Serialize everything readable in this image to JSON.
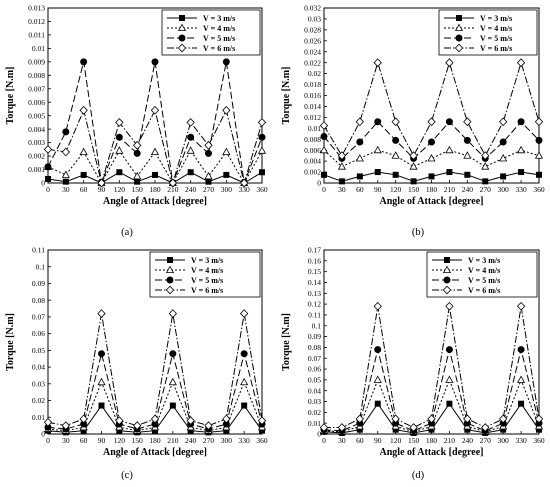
{
  "figure": {
    "panel_captions": [
      "(a)",
      "(b)",
      "(c)",
      "(d)"
    ]
  },
  "series_styles": [
    {
      "name": "V = 3 m/s",
      "dash": "",
      "marker": "square",
      "fill": "#000000"
    },
    {
      "name": "V = 4 m/s",
      "dash": "2,2",
      "marker": "triangle",
      "fill": "#ffffff"
    },
    {
      "name": "V = 5 m/s",
      "dash": "7,3",
      "marker": "circle",
      "fill": "#000000"
    },
    {
      "name": "V = 6 m/s",
      "dash": "7,2,1.5,2",
      "marker": "diamond",
      "fill": "#ffffff"
    }
  ],
  "chart_data": [
    {
      "type": "line",
      "panel": "(a)",
      "xlabel": "Angle of Attack [degree]",
      "ylabel": "Torque [N.m]",
      "xlim": [
        0,
        360
      ],
      "ylim": [
        0,
        0.013
      ],
      "xticks": [
        0,
        30,
        60,
        90,
        120,
        150,
        180,
        210,
        240,
        270,
        300,
        330,
        360
      ],
      "yticks": [
        "0",
        "0.001",
        "0.002",
        "0.003",
        "0.004",
        "0.005",
        "0.006",
        "0.007",
        "0.008",
        "0.009",
        "0.01",
        "0.011",
        "0.012",
        "0.013"
      ],
      "legend_position": "top-right",
      "x": [
        0,
        30,
        60,
        90,
        120,
        150,
        180,
        210,
        240,
        270,
        300,
        330,
        360
      ],
      "series": [
        {
          "name": "V = 3 m/s",
          "values": [
            0.0003,
            0.0001,
            0.0006,
            0.0,
            0.0008,
            0.0001,
            0.0006,
            0.0,
            0.0008,
            0.0001,
            0.0006,
            0.0,
            0.0008
          ]
        },
        {
          "name": "V = 4 m/s",
          "values": [
            0.0012,
            0.0006,
            0.0023,
            0.0,
            0.0024,
            0.0005,
            0.0023,
            0.0,
            0.0024,
            0.0005,
            0.0023,
            0.0,
            0.0024
          ]
        },
        {
          "name": "V = 5 m/s",
          "values": [
            0.0012,
            0.0038,
            0.009,
            0.0,
            0.0034,
            0.0022,
            0.009,
            0.0,
            0.0034,
            0.0022,
            0.009,
            0.0,
            0.0034
          ]
        },
        {
          "name": "V = 6 m/s",
          "values": [
            0.0025,
            0.0023,
            0.0054,
            0.0,
            0.0045,
            0.0028,
            0.0054,
            0.0,
            0.0045,
            0.0028,
            0.0054,
            0.0,
            0.0045
          ]
        }
      ]
    },
    {
      "type": "line",
      "panel": "(b)",
      "xlabel": "Angle of Attack [degree]",
      "ylabel": "Torque [N.m]",
      "xlim": [
        0,
        360
      ],
      "ylim": [
        0,
        0.032
      ],
      "xticks": [
        0,
        30,
        60,
        90,
        120,
        150,
        180,
        210,
        240,
        270,
        300,
        330,
        360
      ],
      "yticks": [
        "0",
        "0.002",
        "0.004",
        "0.006",
        "0.008",
        "0.01",
        "0.012",
        "0.014",
        "0.016",
        "0.018",
        "0.02",
        "0.022",
        "0.024",
        "0.026",
        "0.028",
        "0.03",
        "0.032"
      ],
      "legend_position": "top-right",
      "x": [
        0,
        30,
        60,
        90,
        120,
        150,
        180,
        210,
        240,
        270,
        300,
        330,
        360
      ],
      "series": [
        {
          "name": "V = 3 m/s",
          "values": [
            0.0015,
            0.0003,
            0.0012,
            0.002,
            0.0015,
            0.0003,
            0.0012,
            0.002,
            0.0015,
            0.0003,
            0.0012,
            0.002,
            0.0015
          ]
        },
        {
          "name": "V = 4 m/s",
          "values": [
            0.006,
            0.003,
            0.0045,
            0.006,
            0.005,
            0.003,
            0.0045,
            0.006,
            0.005,
            0.003,
            0.0045,
            0.006,
            0.005
          ]
        },
        {
          "name": "V = 5 m/s",
          "values": [
            0.0085,
            0.0045,
            0.0075,
            0.0112,
            0.0078,
            0.0045,
            0.0075,
            0.0112,
            0.0078,
            0.0045,
            0.0075,
            0.0112,
            0.0078
          ]
        },
        {
          "name": "V = 6 m/s",
          "values": [
            0.0105,
            0.005,
            0.0112,
            0.022,
            0.0112,
            0.005,
            0.0112,
            0.022,
            0.0112,
            0.005,
            0.0112,
            0.022,
            0.0112
          ]
        }
      ]
    },
    {
      "type": "line",
      "panel": "(c)",
      "xlabel": "Angle of Attack [degree]",
      "ylabel": "Torque [N.m]",
      "xlim": [
        0,
        360
      ],
      "ylim": [
        0,
        0.11
      ],
      "xticks": [
        0,
        30,
        60,
        90,
        120,
        150,
        180,
        210,
        240,
        270,
        300,
        330,
        360
      ],
      "yticks": [
        "0",
        "0.01",
        "0.02",
        "0.03",
        "0.04",
        "0.05",
        "0.06",
        "0.07",
        "0.08",
        "0.09",
        "0.1",
        "0.11"
      ],
      "legend_position": "top-right",
      "x": [
        0,
        30,
        60,
        90,
        120,
        150,
        180,
        210,
        240,
        270,
        300,
        330,
        360
      ],
      "series": [
        {
          "name": "V = 3 m/s",
          "values": [
            0.002,
            0.001,
            0.002,
            0.017,
            0.002,
            0.001,
            0.002,
            0.017,
            0.002,
            0.001,
            0.002,
            0.017,
            0.002
          ]
        },
        {
          "name": "V = 4 m/s",
          "values": [
            0.003,
            0.002,
            0.004,
            0.031,
            0.004,
            0.002,
            0.004,
            0.031,
            0.004,
            0.002,
            0.004,
            0.031,
            0.004
          ]
        },
        {
          "name": "V = 5 m/s",
          "values": [
            0.004,
            0.003,
            0.006,
            0.048,
            0.006,
            0.003,
            0.006,
            0.048,
            0.006,
            0.003,
            0.006,
            0.048,
            0.006
          ]
        },
        {
          "name": "V = 6 m/s",
          "values": [
            0.007,
            0.005,
            0.009,
            0.072,
            0.008,
            0.005,
            0.009,
            0.072,
            0.008,
            0.005,
            0.009,
            0.072,
            0.008
          ]
        }
      ]
    },
    {
      "type": "line",
      "panel": "(d)",
      "xlabel": "Angle of Attack [degree]",
      "ylabel": "Torque [N.m]",
      "xlim": [
        0,
        360
      ],
      "ylim": [
        0,
        0.17
      ],
      "xticks": [
        0,
        30,
        60,
        90,
        120,
        150,
        180,
        210,
        240,
        270,
        300,
        330,
        360
      ],
      "yticks": [
        "0",
        "0.01",
        "0.02",
        "0.03",
        "0.04",
        "0.05",
        "0.06",
        "0.07",
        "0.08",
        "0.09",
        "0.1",
        "0.11",
        "0.12",
        "0.13",
        "0.14",
        "0.15",
        "0.16",
        "0.17"
      ],
      "legend_position": "top-right",
      "x": [
        0,
        30,
        60,
        90,
        120,
        150,
        180,
        210,
        240,
        270,
        300,
        330,
        360
      ],
      "series": [
        {
          "name": "V = 3 m/s",
          "values": [
            0.002,
            0.001,
            0.004,
            0.028,
            0.004,
            0.001,
            0.004,
            0.028,
            0.004,
            0.001,
            0.004,
            0.028,
            0.004
          ]
        },
        {
          "name": "V = 4 m/s",
          "values": [
            0.003,
            0.002,
            0.007,
            0.05,
            0.007,
            0.002,
            0.007,
            0.05,
            0.007,
            0.002,
            0.007,
            0.05,
            0.007
          ]
        },
        {
          "name": "V = 5 m/s",
          "values": [
            0.004,
            0.003,
            0.01,
            0.078,
            0.01,
            0.003,
            0.01,
            0.078,
            0.01,
            0.003,
            0.01,
            0.078,
            0.01
          ]
        },
        {
          "name": "V = 6 m/s",
          "values": [
            0.006,
            0.006,
            0.014,
            0.118,
            0.014,
            0.006,
            0.014,
            0.118,
            0.014,
            0.006,
            0.014,
            0.118,
            0.014
          ]
        }
      ]
    }
  ]
}
